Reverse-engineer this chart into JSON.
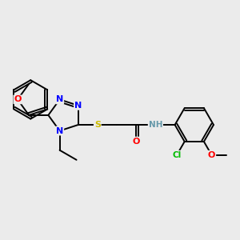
{
  "background_color": "#ebebeb",
  "bond_color": "#000000",
  "atom_colors": {
    "N": "#0000ff",
    "O": "#ff0000",
    "S": "#ccbb00",
    "Cl": "#00bb00",
    "H": "#6699aa",
    "C": "#000000"
  },
  "figsize": [
    3.0,
    3.0
  ],
  "dpi": 100
}
